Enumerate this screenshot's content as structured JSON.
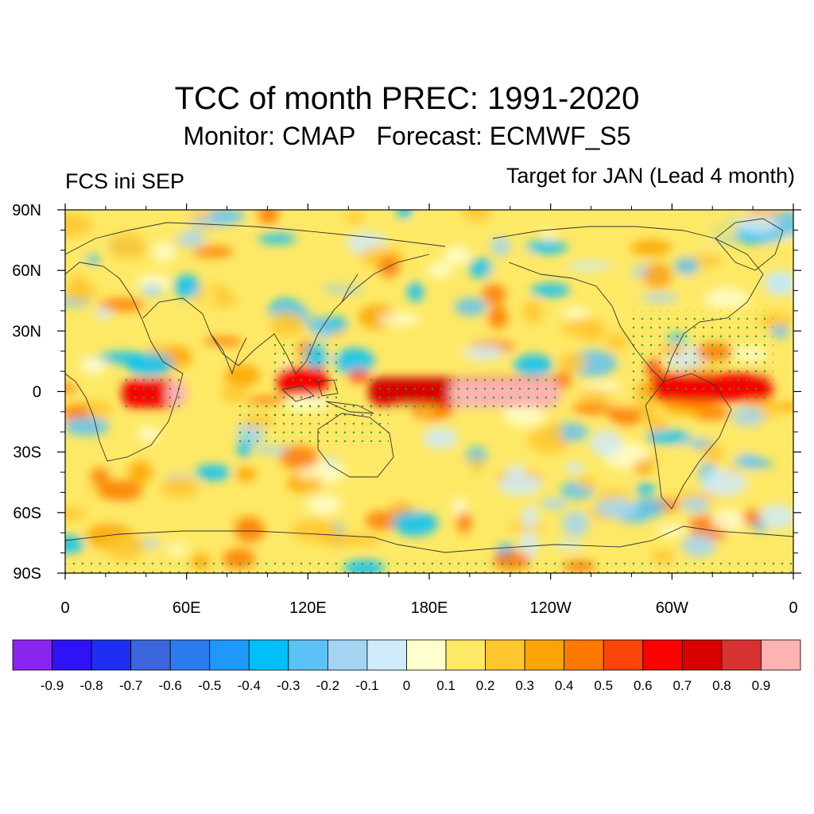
{
  "title": "TCC of month PREC: 1991-2020",
  "subtitle": "Monitor: CMAP   Forecast: ECMWF_S5",
  "left_label": "FCS ini SEP",
  "right_label": "Target for JAN (Lead 4 month)",
  "x_ticks": [
    {
      "lon": 0,
      "label": "0"
    },
    {
      "lon": 60,
      "label": "60E"
    },
    {
      "lon": 120,
      "label": "120E"
    },
    {
      "lon": 180,
      "label": "180E"
    },
    {
      "lon": 240,
      "label": "120W"
    },
    {
      "lon": 300,
      "label": "60W"
    },
    {
      "lon": 360,
      "label": "0"
    }
  ],
  "y_ticks": [
    {
      "lat": 90,
      "label": "90N"
    },
    {
      "lat": 60,
      "label": "60N"
    },
    {
      "lat": 30,
      "label": "30N"
    },
    {
      "lat": 0,
      "label": "0"
    },
    {
      "lat": -30,
      "label": "30S"
    },
    {
      "lat": -60,
      "label": "60S"
    },
    {
      "lat": -90,
      "label": "90S"
    }
  ],
  "colorbar": {
    "colors": [
      "#8a25f0",
      "#2f12f5",
      "#1d2ff2",
      "#3c66de",
      "#2b7cf0",
      "#1e99fb",
      "#00bffb",
      "#5cc2f6",
      "#a3d5f3",
      "#d0ebf9",
      "#fffecd",
      "#fee966",
      "#fec62e",
      "#fca307",
      "#fc7a01",
      "#fb440a",
      "#fb0200",
      "#d90000",
      "#d73232",
      "#ffb2b2"
    ],
    "labels": [
      "-0.9",
      "-0.8",
      "-0.7",
      "-0.6",
      "-0.5",
      "-0.4",
      "-0.3",
      "-0.2",
      "-0.1",
      "0",
      "0.1",
      "0.2",
      "0.3",
      "0.4",
      "0.5",
      "0.6",
      "0.7",
      "0.8",
      "0.9"
    ]
  }
}
